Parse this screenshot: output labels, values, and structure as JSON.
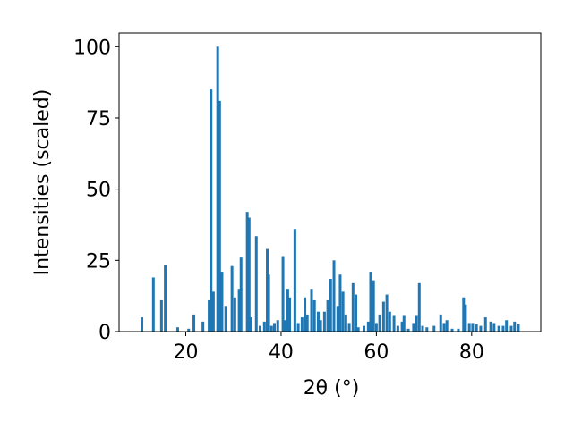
{
  "chart_data": {
    "type": "bar",
    "xlabel": "2θ (°)",
    "ylabel": "Intensities (scaled)",
    "color": "#1f77b4",
    "xlim": [
      6,
      94.5
    ],
    "ylim": [
      0,
      104.8
    ],
    "xticks": [
      20,
      40,
      60,
      80
    ],
    "yticks": [
      0,
      25,
      50,
      75,
      100
    ],
    "x": [
      10.8,
      13.2,
      14.9,
      15.7,
      18.3,
      20.6,
      21.7,
      23.6,
      24.9,
      25.3,
      25.8,
      26.7,
      27.1,
      27.6,
      28.4,
      29.7,
      30.3,
      31.2,
      31.6,
      32.9,
      33.3,
      33.7,
      34.8,
      35.6,
      36.5,
      37.1,
      37.4,
      38,
      38.6,
      39.3,
      40.4,
      40.8,
      41.4,
      41.8,
      42.9,
      43.6,
      44.4,
      45,
      45.5,
      46.4,
      47,
      47.8,
      48.3,
      49.1,
      49.8,
      50.4,
      51.1,
      51.9,
      52.4,
      53,
      53.6,
      54.3,
      55.1,
      55.7,
      56.2,
      57.4,
      58.3,
      58.8,
      59.4,
      60,
      60.7,
      61.5,
      62.2,
      62.8,
      63.7,
      64.5,
      65.4,
      65.8,
      66.7,
      67.8,
      68.4,
      69,
      69.7,
      70.6,
      72.1,
      73.5,
      74.2,
      74.8,
      75.9,
      77.2,
      78.3,
      78.7,
      79.5,
      80.2,
      81,
      81.9,
      82.9,
      84,
      84.7,
      85.7,
      86.6,
      87.3,
      88.3,
      89,
      89.8
    ],
    "values": [
      5,
      19,
      11,
      23.5,
      1.5,
      1,
      6,
      3.5,
      11,
      85,
      14,
      100,
      81,
      21,
      9,
      23,
      12,
      15,
      26,
      42,
      40,
      5,
      33.5,
      2,
      3.5,
      29,
      20,
      2,
      3,
      4,
      26.5,
      4,
      15,
      12,
      36,
      3,
      5,
      12,
      6,
      15,
      11,
      7,
      4,
      7,
      11,
      18.5,
      25,
      9,
      20,
      14,
      6,
      3,
      17,
      13,
      1.5,
      2,
      3.5,
      21,
      18,
      3,
      6,
      10.5,
      13,
      7,
      5.5,
      2,
      3.5,
      5.5,
      1,
      3,
      5.5,
      17,
      2,
      1.5,
      2,
      6,
      3,
      4,
      1,
      1,
      12,
      9.5,
      3,
      3,
      2.5,
      2,
      5,
      3.5,
      3,
      2,
      2,
      4,
      2,
      3.5,
      2.5
    ]
  }
}
